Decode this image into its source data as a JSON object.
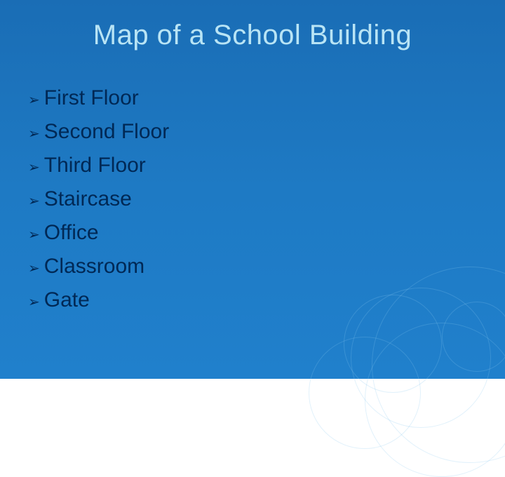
{
  "slide": {
    "title": "Map of a School Building",
    "title_color": "#b8e4f5",
    "title_fontsize": 40,
    "background_gradient": [
      "#1a6db5",
      "#1e7ac4",
      "#2080cc"
    ],
    "bullet_glyph": "➢",
    "bullet_color": "#002855",
    "item_text_color": "#002855",
    "item_fontsize": 30,
    "items": [
      "First Floor",
      "Second Floor",
      "Third Floor",
      "Staircase",
      "Office",
      "Classroom",
      "Gate"
    ],
    "decorative_circle_color": "rgba(135,200,240,0.25)"
  }
}
